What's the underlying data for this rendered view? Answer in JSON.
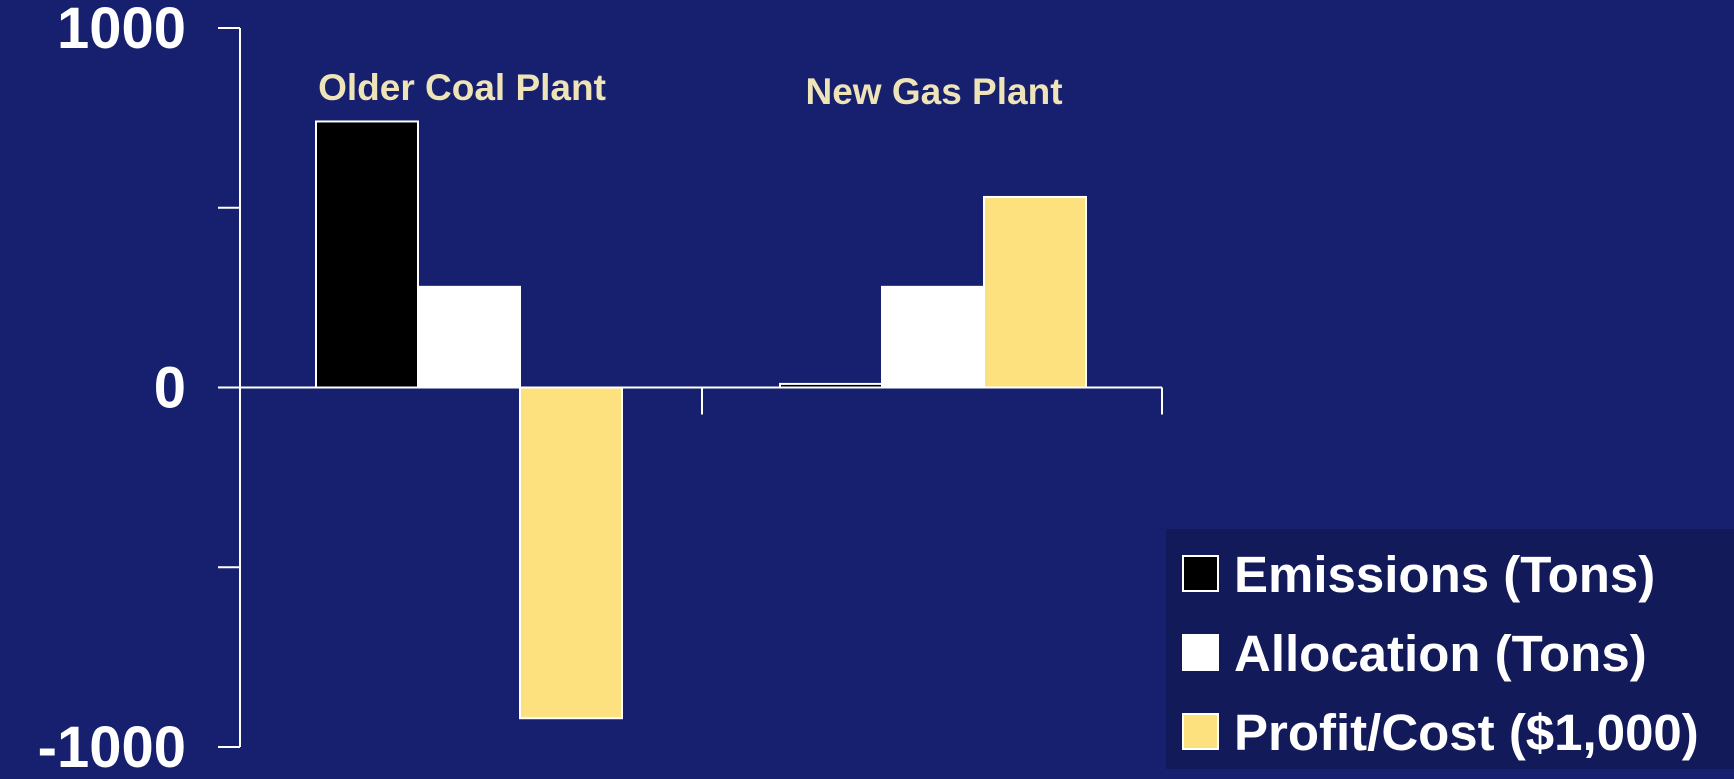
{
  "chart_data": {
    "type": "bar",
    "categories": [
      "Older Coal Plant",
      "New Gas Plant"
    ],
    "series": [
      {
        "name": "Emissions (Tons)",
        "color": "#000000",
        "values": [
          740,
          10
        ]
      },
      {
        "name": "Allocation (Tons)",
        "color": "#ffffff",
        "values": [
          280,
          280
        ]
      },
      {
        "name": "Profit/Cost ($1,000)",
        "color": "#fee17f",
        "values": [
          -920,
          530
        ]
      }
    ],
    "yticks": [
      "1000",
      "0",
      "-1000"
    ],
    "ylim": [
      -1000,
      1000
    ],
    "legend_position": "bottom-right",
    "grid": false
  },
  "colors": {
    "background": "#17206e",
    "legend_background": "#121a59",
    "category_label": "#efe3b8",
    "axis": "#ffffff"
  }
}
